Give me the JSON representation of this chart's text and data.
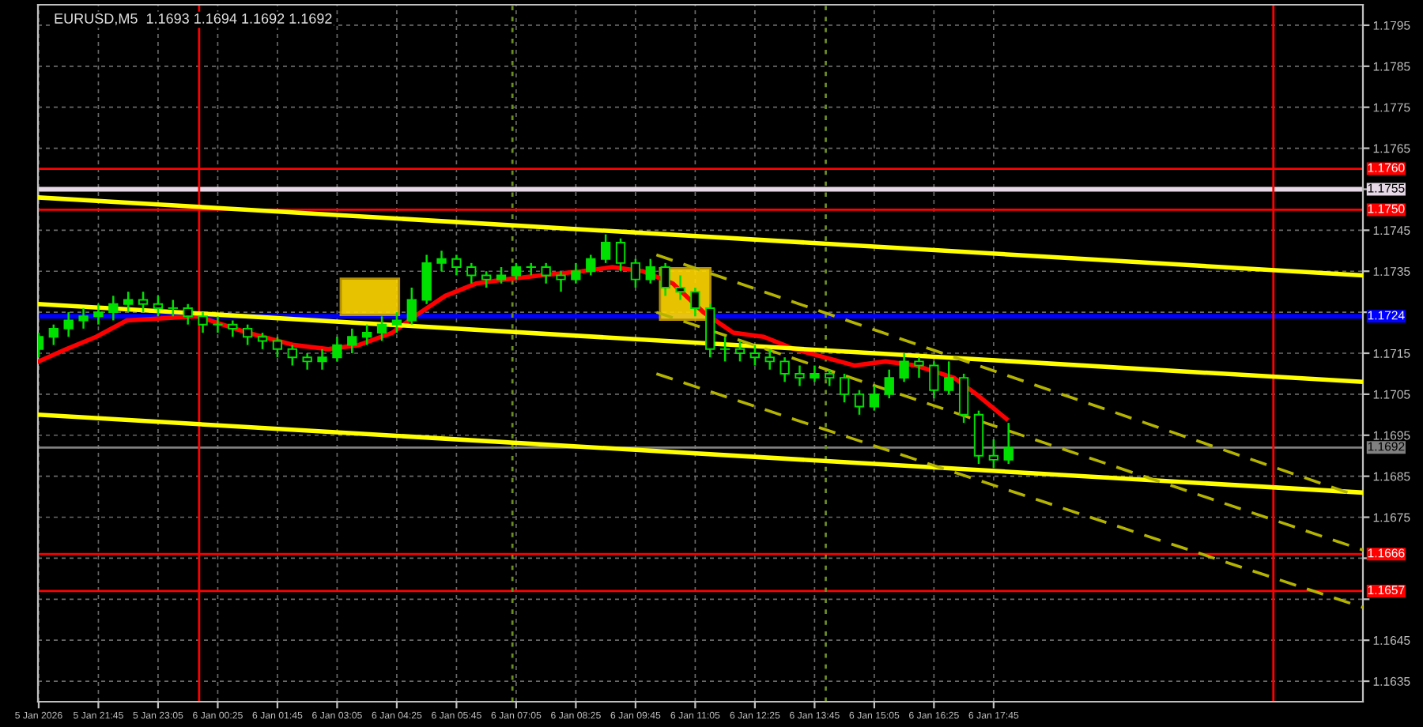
{
  "chart_data": {
    "type": "candlestick",
    "title": "EURUSD,M5  1.1693 1.1694 1.1692 1.1692",
    "color": "#00e000",
    "x": [
      "2026-01-05T20:25",
      "2026-01-05T20:45",
      "2026-01-05T21:05",
      "2026-01-05T21:25",
      "2026-01-05T21:45",
      "2026-01-05T22:05",
      "2026-01-05T22:25",
      "2026-01-05T22:45",
      "2026-01-05T23:05",
      "2026-01-05T23:25",
      "2026-01-05T23:45",
      "2026-01-06T00:05",
      "2026-01-06T00:25",
      "2026-01-06T00:45",
      "2026-01-06T01:05",
      "2026-01-06T01:25",
      "2026-01-06T01:45",
      "2026-01-06T02:05",
      "2026-01-06T02:25",
      "2026-01-06T02:45",
      "2026-01-06T03:05",
      "2026-01-06T03:25",
      "2026-01-06T03:45",
      "2026-01-06T04:05",
      "2026-01-06T04:25",
      "2026-01-06T04:45",
      "2026-01-06T05:05",
      "2026-01-06T05:25",
      "2026-01-06T05:45",
      "2026-01-06T06:05",
      "2026-01-06T06:25",
      "2026-01-06T06:45",
      "2026-01-06T07:05",
      "2026-01-06T07:25",
      "2026-01-06T07:45",
      "2026-01-06T08:05",
      "2026-01-06T08:25",
      "2026-01-06T08:45",
      "2026-01-06T09:05",
      "2026-01-06T09:25",
      "2026-01-06T09:45",
      "2026-01-06T10:05",
      "2026-01-06T10:25",
      "2026-01-06T10:45",
      "2026-01-06T11:05",
      "2026-01-06T11:25",
      "2026-01-06T11:45",
      "2026-01-06T12:05",
      "2026-01-06T12:25",
      "2026-01-06T12:45",
      "2026-01-06T13:05",
      "2026-01-06T13:25",
      "2026-01-06T13:45",
      "2026-01-06T14:05",
      "2026-01-06T14:25",
      "2026-01-06T14:45",
      "2026-01-06T15:05",
      "2026-01-06T15:25",
      "2026-01-06T15:45",
      "2026-01-06T16:05",
      "2026-01-06T16:25",
      "2026-01-06T16:45",
      "2026-01-06T17:05",
      "2026-01-06T17:25",
      "2026-01-06T17:45",
      "2026-01-06T18:05"
    ],
    "ohlc": [
      [
        1.1716,
        1.172,
        1.1714,
        1.1719
      ],
      [
        1.1719,
        1.1722,
        1.1717,
        1.1721
      ],
      [
        1.1721,
        1.1725,
        1.1719,
        1.1723
      ],
      [
        1.1723,
        1.1726,
        1.1721,
        1.1724
      ],
      [
        1.1724,
        1.1727,
        1.1722,
        1.1725
      ],
      [
        1.1725,
        1.1729,
        1.1723,
        1.1727
      ],
      [
        1.1727,
        1.173,
        1.1725,
        1.1728
      ],
      [
        1.1728,
        1.173,
        1.1725,
        1.1727
      ],
      [
        1.1727,
        1.1729,
        1.1724,
        1.1726
      ],
      [
        1.1726,
        1.1728,
        1.1724,
        1.1726
      ],
      [
        1.1726,
        1.1727,
        1.1722,
        1.1724
      ],
      [
        1.1724,
        1.1725,
        1.172,
        1.1722
      ],
      [
        1.1722,
        1.1724,
        1.172,
        1.1722
      ],
      [
        1.1722,
        1.1723,
        1.1719,
        1.1721
      ],
      [
        1.1721,
        1.1722,
        1.1717,
        1.1719
      ],
      [
        1.1719,
        1.172,
        1.1716,
        1.1718
      ],
      [
        1.1718,
        1.1719,
        1.1714,
        1.1716
      ],
      [
        1.1716,
        1.1717,
        1.1712,
        1.1714
      ],
      [
        1.1714,
        1.1715,
        1.1711,
        1.1713
      ],
      [
        1.1713,
        1.1716,
        1.1711,
        1.1714
      ],
      [
        1.1714,
        1.1719,
        1.1713,
        1.1717
      ],
      [
        1.1717,
        1.1721,
        1.1715,
        1.1719
      ],
      [
        1.1719,
        1.1722,
        1.1717,
        1.172
      ],
      [
        1.172,
        1.1724,
        1.1718,
        1.1722
      ],
      [
        1.1722,
        1.1725,
        1.172,
        1.1723
      ],
      [
        1.1723,
        1.1731,
        1.1722,
        1.1728
      ],
      [
        1.1728,
        1.1739,
        1.1727,
        1.1737
      ],
      [
        1.1737,
        1.174,
        1.1735,
        1.1738
      ],
      [
        1.1738,
        1.1739,
        1.1734,
        1.1736
      ],
      [
        1.1736,
        1.1737,
        1.1732,
        1.1734
      ],
      [
        1.1734,
        1.1735,
        1.1731,
        1.1733
      ],
      [
        1.1733,
        1.1736,
        1.1732,
        1.1734
      ],
      [
        1.1734,
        1.1737,
        1.1733,
        1.1736
      ],
      [
        1.1736,
        1.1737,
        1.1734,
        1.1736
      ],
      [
        1.1736,
        1.1737,
        1.1732,
        1.1734
      ],
      [
        1.1734,
        1.1735,
        1.173,
        1.1733
      ],
      [
        1.1733,
        1.1737,
        1.1732,
        1.1735
      ],
      [
        1.1735,
        1.1739,
        1.1734,
        1.1738
      ],
      [
        1.1738,
        1.1744,
        1.1737,
        1.1742
      ],
      [
        1.1742,
        1.1743,
        1.1735,
        1.1737
      ],
      [
        1.1737,
        1.1738,
        1.1731,
        1.1733
      ],
      [
        1.1733,
        1.1738,
        1.1732,
        1.1736
      ],
      [
        1.1736,
        1.1737,
        1.1729,
        1.1731
      ],
      [
        1.1731,
        1.1734,
        1.1728,
        1.173
      ],
      [
        1.173,
        1.1731,
        1.1724,
        1.1726
      ],
      [
        1.1726,
        1.1727,
        1.1714,
        1.1716
      ],
      [
        1.1716,
        1.1719,
        1.1713,
        1.1716
      ],
      [
        1.1716,
        1.1718,
        1.1713,
        1.1715
      ],
      [
        1.1715,
        1.1717,
        1.1712,
        1.1714
      ],
      [
        1.1714,
        1.1716,
        1.1711,
        1.1713
      ],
      [
        1.1713,
        1.1714,
        1.1708,
        1.171
      ],
      [
        1.171,
        1.1712,
        1.1707,
        1.1709
      ],
      [
        1.1709,
        1.1712,
        1.1708,
        1.171
      ],
      [
        1.171,
        1.1711,
        1.1707,
        1.1709
      ],
      [
        1.1709,
        1.171,
        1.1703,
        1.1705
      ],
      [
        1.1705,
        1.1706,
        1.17,
        1.1702
      ],
      [
        1.1702,
        1.1707,
        1.1701,
        1.1705
      ],
      [
        1.1705,
        1.1711,
        1.1704,
        1.1709
      ],
      [
        1.1709,
        1.1715,
        1.1708,
        1.1713
      ],
      [
        1.1713,
        1.1714,
        1.1709,
        1.1712
      ],
      [
        1.1712,
        1.1713,
        1.1704,
        1.1706
      ],
      [
        1.1706,
        1.1713,
        1.1705,
        1.1709
      ],
      [
        1.1709,
        1.171,
        1.1698,
        1.17
      ],
      [
        1.17,
        1.1701,
        1.1688,
        1.169
      ],
      [
        1.169,
        1.1694,
        1.1687,
        1.1689
      ],
      [
        1.1689,
        1.1698,
        1.1688,
        1.1692
      ]
    ],
    "series": [
      {
        "type": "line",
        "color": "#ff0000",
        "x": [
          "2026-01-05T20:25",
          "2026-01-05T21:02",
          "2026-01-05T21:42",
          "2026-01-05T22:23",
          "2026-01-05T23:58",
          "2026-01-06T01:05",
          "2026-01-06T02:07",
          "2026-01-06T02:53",
          "2026-01-06T03:34",
          "2026-01-06T04:19",
          "2026-01-06T04:49",
          "2026-01-06T05:30",
          "2026-01-06T06:11",
          "2026-01-06T06:51",
          "2026-01-06T07:38",
          "2026-01-06T08:33",
          "2026-01-06T09:14",
          "2026-01-06T09:55",
          "2026-01-06T10:35",
          "2026-01-06T11:16",
          "2026-01-06T11:56",
          "2026-01-06T12:37",
          "2026-01-06T13:18",
          "2026-01-06T13:58",
          "2026-01-06T14:39",
          "2026-01-06T15:20",
          "2026-01-06T16:01",
          "2026-01-06T16:52",
          "2026-01-06T17:22",
          "2026-01-06T18:02"
        ],
        "values": [
          1.1713,
          1.1716,
          1.1719,
          1.1723,
          1.1724,
          1.172,
          1.1717,
          1.1716,
          1.1717,
          1.172,
          1.1724,
          1.1729,
          1.1732,
          1.1733,
          1.1734,
          1.1735,
          1.1736,
          1.1735,
          1.1732,
          1.1725,
          1.172,
          1.1719,
          1.1716,
          1.1714,
          1.1712,
          1.1713,
          1.1712,
          1.1709,
          1.1705,
          1.1699
        ]
      },
      {
        "type": "line",
        "color": "#ffff00",
        "x": [
          "2026-01-05T20:24",
          "2026-01-07T02:00"
        ],
        "values": [
          1.1753,
          1.1734
        ]
      },
      {
        "type": "line",
        "color": "#ffff00",
        "x": [
          "2026-01-05T20:24",
          "2026-01-07T02:00"
        ],
        "values": [
          1.1727,
          1.1708
        ]
      },
      {
        "type": "line",
        "color": "#ffff00",
        "x": [
          "2026-01-05T20:24",
          "2026-01-07T02:00"
        ],
        "values": [
          1.17,
          1.1681
        ]
      },
      {
        "type": "line",
        "color": "#b4b400",
        "line_style": "dashed",
        "x": [
          "2026-01-06T10:13",
          "2026-01-07T01:40"
        ],
        "values": [
          1.1739,
          1.1681
        ]
      },
      {
        "type": "line",
        "color": "#b4b400",
        "line_style": "dashed",
        "x": [
          "2026-01-06T10:13",
          "2026-01-07T02:00"
        ],
        "values": [
          1.1725,
          1.1667
        ]
      },
      {
        "type": "line",
        "color": "#b4b400",
        "line_style": "dashed",
        "x": [
          "2026-01-06T10:13",
          "2026-01-07T02:00"
        ],
        "values": [
          1.171,
          1.1653
        ]
      }
    ],
    "ref_lines": [
      {
        "axis": "y",
        "value": 1.176,
        "label": "1.1760",
        "color": "#ff0000"
      },
      {
        "axis": "y",
        "value": 1.1755,
        "label": "1.1755",
        "color": "#e6d8e6"
      },
      {
        "axis": "y",
        "value": 1.175,
        "label": "1.1750",
        "color": "#ff0000"
      },
      {
        "axis": "y",
        "value": 1.1724,
        "label": "1.1724",
        "color": "#0000ff"
      },
      {
        "axis": "y",
        "value": 1.1692,
        "label": "1.1692",
        "color": "#808080"
      },
      {
        "axis": "y",
        "value": 1.1666,
        "label": "1.1666",
        "color": "#ff0000"
      },
      {
        "axis": "y",
        "value": 1.1657,
        "label": "1.1657",
        "color": "#ff0000"
      },
      {
        "axis": "x",
        "value": "2026-01-06T00:00",
        "label": null,
        "color": "#ff0000"
      },
      {
        "axis": "x",
        "value": "2026-01-07T00:00",
        "label": null,
        "color": "#ff0000"
      },
      {
        "axis": "x",
        "value": "2026-01-06T07:00",
        "label": null,
        "color": "#6b8e23",
        "line_style": "dotted"
      },
      {
        "axis": "x",
        "value": "2026-01-06T14:00",
        "label": null,
        "color": "#6b8e23",
        "line_style": "dotted"
      }
    ],
    "xlim": [
      "2026-01-05T20:24",
      "2026-01-07T02:00"
    ],
    "ylim": [
      1.163,
      1.18
    ],
    "xticks": [
      {
        "value": "2026-01-05T20:25",
        "label": "5 Jan 2026"
      },
      {
        "value": "2026-01-05T21:45",
        "label": "5 Jan 21:45"
      },
      {
        "value": "2026-01-05T23:05",
        "label": "5 Jan 23:05"
      },
      {
        "value": "2026-01-06T00:25",
        "label": "6 Jan 00:25"
      },
      {
        "value": "2026-01-06T01:45",
        "label": "6 Jan 01:45"
      },
      {
        "value": "2026-01-06T03:05",
        "label": "6 Jan 03:05"
      },
      {
        "value": "2026-01-06T04:25",
        "label": "6 Jan 04:25"
      },
      {
        "value": "2026-01-06T05:45",
        "label": "6 Jan 05:45"
      },
      {
        "value": "2026-01-06T07:05",
        "label": "6 Jan 07:05"
      },
      {
        "value": "2026-01-06T08:25",
        "label": "6 Jan 08:25"
      },
      {
        "value": "2026-01-06T09:45",
        "label": "6 Jan 09:45"
      },
      {
        "value": "2026-01-06T11:05",
        "label": "6 Jan 11:05"
      },
      {
        "value": "2026-01-06T12:25",
        "label": "6 Jan 12:25"
      },
      {
        "value": "2026-01-06T13:45",
        "label": "6 Jan 13:45"
      },
      {
        "value": "2026-01-06T15:05",
        "label": "6 Jan 15:05"
      },
      {
        "value": "2026-01-06T16:25",
        "label": "6 Jan 16:25"
      },
      {
        "value": "2026-01-06T17:45",
        "label": "6 Jan 17:45"
      }
    ],
    "yticks": [
      1.1635,
      1.1645,
      {
        "value": 1.1655,
        "label": null
      },
      {
        "value": 1.1665,
        "label": null
      },
      1.1675,
      1.1685,
      1.1695,
      1.1705,
      1.1715,
      {
        "value": 1.1725,
        "label": null
      },
      1.1735,
      1.1745,
      {
        "value": 1.1755,
        "label": null
      },
      1.1765,
      1.1775,
      1.1785,
      1.1795
    ],
    "grid": true
  }
}
